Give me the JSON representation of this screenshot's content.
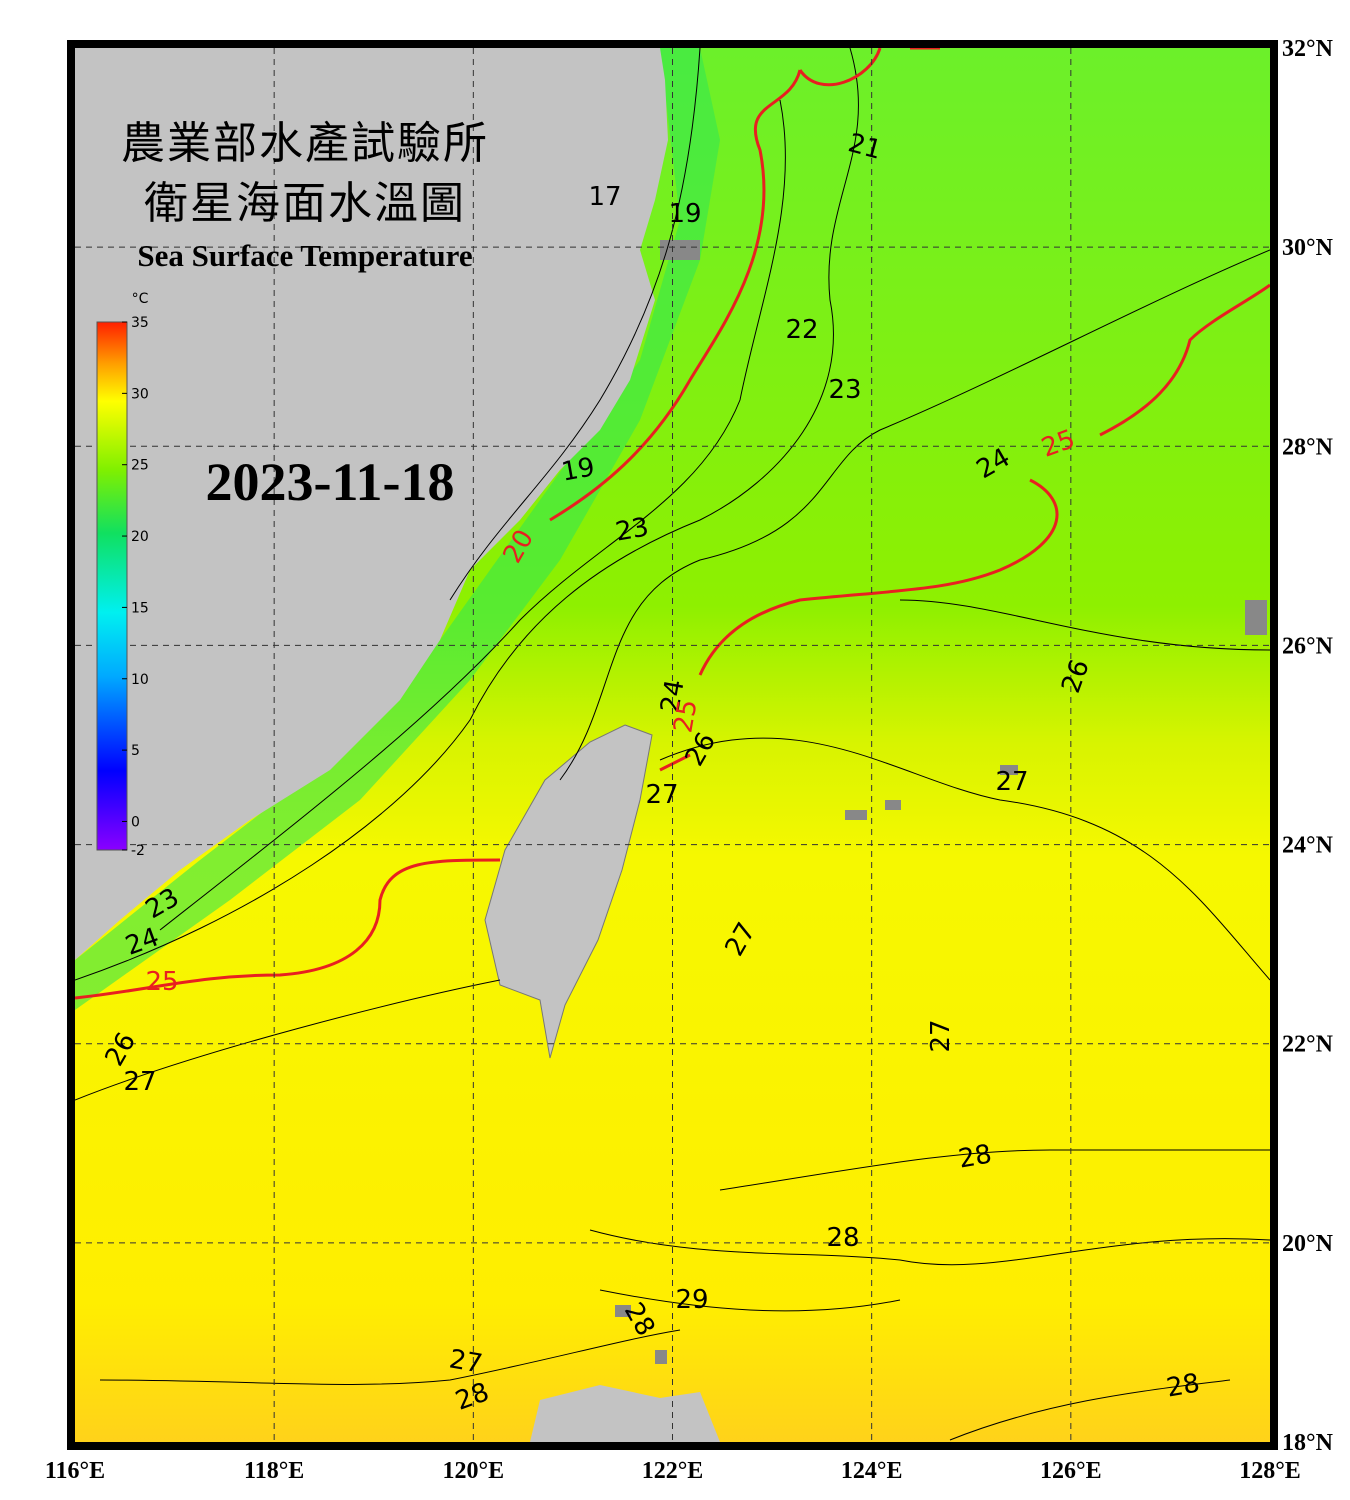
{
  "header": {
    "title_zh": [
      "農業部水產試驗所",
      "衛星海面水溫圖"
    ],
    "title_en": "Sea Surface Temperature",
    "date": "2023-11-18"
  },
  "colorbar": {
    "unit": "°C",
    "min": -2,
    "max": 35,
    "ticks": [
      35,
      30,
      25,
      20,
      15,
      10,
      5,
      0,
      -2
    ]
  },
  "axes": {
    "lon": [
      {
        "value": 116,
        "label": "116°E"
      },
      {
        "value": 118,
        "label": "118°E"
      },
      {
        "value": 120,
        "label": "120°E"
      },
      {
        "value": 122,
        "label": "122°E"
      },
      {
        "value": 124,
        "label": "124°E"
      },
      {
        "value": 126,
        "label": "126°E"
      },
      {
        "value": 128,
        "label": "128°E"
      }
    ],
    "lat": [
      {
        "value": 18,
        "label": "18°N"
      },
      {
        "value": 20,
        "label": "20°N"
      },
      {
        "value": 22,
        "label": "22°N"
      },
      {
        "value": 24,
        "label": "24°N"
      },
      {
        "value": 26,
        "label": "26°N"
      },
      {
        "value": 28,
        "label": "28°N"
      },
      {
        "value": 30,
        "label": "30°N"
      },
      {
        "value": 32,
        "label": "32°N"
      }
    ]
  },
  "contour_labels": [
    17,
    19,
    21,
    22,
    23,
    19,
    20,
    23,
    24,
    25,
    26,
    24,
    25,
    26,
    27,
    27,
    27,
    27,
    23,
    24,
    25,
    26,
    27,
    28,
    28,
    29,
    28,
    27,
    28,
    28
  ]
}
